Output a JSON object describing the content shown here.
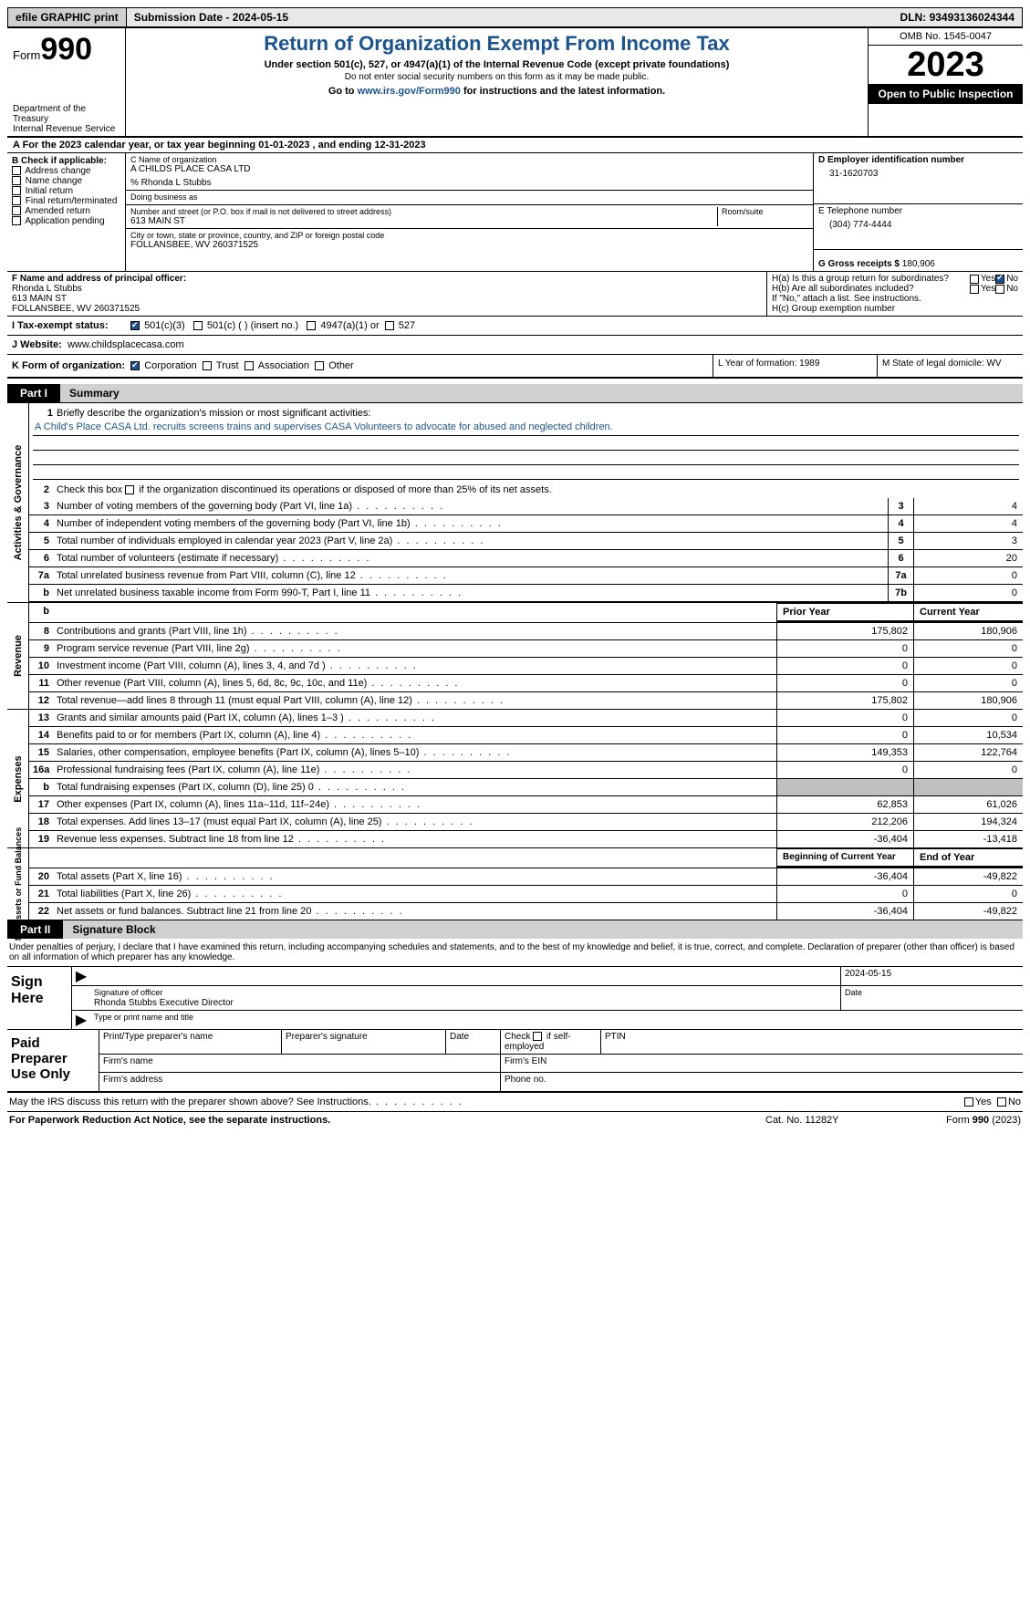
{
  "topbar": {
    "efile": "efile GRAPHIC print",
    "submission": "Submission Date - 2024-05-15",
    "dln_label": "DLN:",
    "dln": "93493136024344"
  },
  "header": {
    "form_word": "Form",
    "form_num": "990",
    "dept": "Department of the Treasury",
    "irs": "Internal Revenue Service",
    "title": "Return of Organization Exempt From Income Tax",
    "sub1": "Under section 501(c), 527, or 4947(a)(1) of the Internal Revenue Code (except private foundations)",
    "sub2": "Do not enter social security numbers on this form as it may be made public.",
    "sub3_pre": "Go to ",
    "sub3_link": "www.irs.gov/Form990",
    "sub3_post": " for instructions and the latest information.",
    "omb": "OMB No. 1545-0047",
    "year": "2023",
    "open": "Open to Public Inspection"
  },
  "tyline": "A  For the 2023 calendar year, or tax year beginning 01-01-2023    , and ending 12-31-2023",
  "boxB": {
    "label": "B Check if applicable:",
    "items": [
      "Address change",
      "Name change",
      "Initial return",
      "Final return/terminated",
      "Amended return",
      "Application pending"
    ]
  },
  "boxC": {
    "label": "C Name of organization",
    "org": "A CHILDS PLACE CASA LTD",
    "care": "% Rhonda L Stubbs",
    "dba_lbl": "Doing business as",
    "addr_lbl": "Number and street (or P.O. box if mail is not delivered to street address)",
    "addr": "613 MAIN ST",
    "room_lbl": "Room/suite",
    "city_lbl": "City or town, state or province, country, and ZIP or foreign postal code",
    "city": "FOLLANSBEE, WV  260371525"
  },
  "boxD": {
    "label": "D Employer identification number",
    "val": "31-1620703"
  },
  "boxE": {
    "label": "E Telephone number",
    "val": "(304) 774-4444"
  },
  "boxG": {
    "label": "G Gross receipts $",
    "val": "180,906"
  },
  "boxF": {
    "label": "F  Name and address of principal officer:",
    "name": "Rhonda L Stubbs",
    "addr1": "613 MAIN ST",
    "addr2": "FOLLANSBEE, WV  260371525"
  },
  "boxH": {
    "a": "H(a)  Is this a group return for subordinates?",
    "b": "H(b)  Are all subordinates included?",
    "note": "If \"No,\" attach a list. See instructions.",
    "c": "H(c)  Group exemption number"
  },
  "taxexempt": {
    "label": "I    Tax-exempt status:",
    "c3": "501(c)(3)",
    "c": "501(c) (  ) (insert no.)",
    "a1": "4947(a)(1) or",
    "s527": "527"
  },
  "boxJ": {
    "label": "J    Website:",
    "val": "www.childsplacecasa.com"
  },
  "boxK": {
    "label": "K Form of organization:",
    "corp": "Corporation",
    "trust": "Trust",
    "assoc": "Association",
    "other": "Other"
  },
  "boxL": "L Year of formation: 1989",
  "boxM": "M State of legal domicile: WV",
  "part1": {
    "tab": "Part I",
    "title": "Summary"
  },
  "summary": {
    "q1": "Briefly describe the organization's mission or most significant activities:",
    "mission": "A Child's Place CASA Ltd. recruits screens trains and supervises CASA Volunteers to advocate for abused and neglected children.",
    "q2": "Check this box         if the organization discontinued its operations or disposed of more than 25% of its net assets.",
    "lines_gov": [
      {
        "n": "3",
        "t": "Number of voting members of the governing body (Part VI, line 1a)",
        "box": "3",
        "v": "4"
      },
      {
        "n": "4",
        "t": "Number of independent voting members of the governing body (Part VI, line 1b)",
        "box": "4",
        "v": "4"
      },
      {
        "n": "5",
        "t": "Total number of individuals employed in calendar year 2023 (Part V, line 2a)",
        "box": "5",
        "v": "3"
      },
      {
        "n": "6",
        "t": "Total number of volunteers (estimate if necessary)",
        "box": "6",
        "v": "20"
      },
      {
        "n": "7a",
        "t": "Total unrelated business revenue from Part VIII, column (C), line 12",
        "box": "7a",
        "v": "0"
      },
      {
        "n": "b",
        "t": "Net unrelated business taxable income from Form 990-T, Part I, line 11",
        "box": "7b",
        "v": "0"
      }
    ],
    "col_prior": "Prior Year",
    "col_curr": "Current Year",
    "rev": [
      {
        "n": "8",
        "t": "Contributions and grants (Part VIII, line 1h)",
        "p": "175,802",
        "c": "180,906"
      },
      {
        "n": "9",
        "t": "Program service revenue (Part VIII, line 2g)",
        "p": "0",
        "c": "0"
      },
      {
        "n": "10",
        "t": "Investment income (Part VIII, column (A), lines 3, 4, and 7d )",
        "p": "0",
        "c": "0"
      },
      {
        "n": "11",
        "t": "Other revenue (Part VIII, column (A), lines 5, 6d, 8c, 9c, 10c, and 11e)",
        "p": "0",
        "c": "0"
      },
      {
        "n": "12",
        "t": "Total revenue—add lines 8 through 11 (must equal Part VIII, column (A), line 12)",
        "p": "175,802",
        "c": "180,906"
      }
    ],
    "exp": [
      {
        "n": "13",
        "t": "Grants and similar amounts paid (Part IX, column (A), lines 1–3 )",
        "p": "0",
        "c": "0"
      },
      {
        "n": "14",
        "t": "Benefits paid to or for members (Part IX, column (A), line 4)",
        "p": "0",
        "c": "10,534"
      },
      {
        "n": "15",
        "t": "Salaries, other compensation, employee benefits (Part IX, column (A), lines 5–10)",
        "p": "149,353",
        "c": "122,764"
      },
      {
        "n": "16a",
        "t": "Professional fundraising fees (Part IX, column (A), line 11e)",
        "p": "0",
        "c": "0"
      },
      {
        "n": "b",
        "t": "Total fundraising expenses (Part IX, column (D), line 25) 0",
        "p": "",
        "c": "",
        "grey": true
      },
      {
        "n": "17",
        "t": "Other expenses (Part IX, column (A), lines 11a–11d, 11f–24e)",
        "p": "62,853",
        "c": "61,026"
      },
      {
        "n": "18",
        "t": "Total expenses. Add lines 13–17 (must equal Part IX, column (A), line 25)",
        "p": "212,206",
        "c": "194,324"
      },
      {
        "n": "19",
        "t": "Revenue less expenses. Subtract line 18 from line 12",
        "p": "-36,404",
        "c": "-13,418"
      }
    ],
    "col_beg": "Beginning of Current Year",
    "col_end": "End of Year",
    "net": [
      {
        "n": "20",
        "t": "Total assets (Part X, line 16)",
        "p": "-36,404",
        "c": "-49,822"
      },
      {
        "n": "21",
        "t": "Total liabilities (Part X, line 26)",
        "p": "0",
        "c": "0"
      },
      {
        "n": "22",
        "t": "Net assets or fund balances. Subtract line 21 from line 20",
        "p": "-36,404",
        "c": "-49,822"
      }
    ]
  },
  "side_labels": {
    "gov": "Activities & Governance",
    "rev": "Revenue",
    "exp": "Expenses",
    "net": "Net Assets or\nFund Balances"
  },
  "part2": {
    "tab": "Part II",
    "title": "Signature Block"
  },
  "sig": {
    "intro": "Under penalties of perjury, I declare that I have examined this return, including accompanying schedules and statements, and to the best of my knowledge and belief, it is true, correct, and complete. Declaration of preparer (other than officer) is based on all information of which preparer has any knowledge.",
    "date": "2024-05-15",
    "sign_here": "Sign Here",
    "sig_officer": "Signature of officer",
    "date_lbl": "Date",
    "officer": "Rhonda Stubbs  Executive Director",
    "type_lbl": "Type or print name and title"
  },
  "paid": {
    "label": "Paid Preparer Use Only",
    "h1": "Print/Type preparer's name",
    "h2": "Preparer's signature",
    "h3": "Date",
    "h4pre": "Check",
    "h4post": "if self-employed",
    "h5": "PTIN",
    "firm": "Firm's name",
    "ein": "Firm's EIN",
    "addr": "Firm's address",
    "phone": "Phone no."
  },
  "footer": {
    "discuss": "May the IRS discuss this return with the preparer shown above? See Instructions.",
    "yes": "Yes",
    "no": "No",
    "paperwork": "For Paperwork Reduction Act Notice, see the separate instructions.",
    "cat": "Cat. No. 11282Y",
    "form": "Form 990 (2023)"
  }
}
